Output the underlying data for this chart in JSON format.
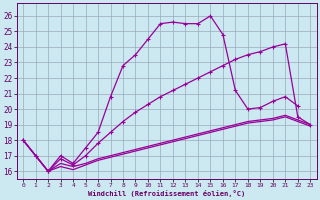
{
  "xlabel": "Windchill (Refroidissement éolien,°C)",
  "background_color": "#cce8f0",
  "grid_color": "#99aabb",
  "line_color": "#990099",
  "xlim": [
    -0.5,
    23.5
  ],
  "ylim": [
    15.5,
    26.8
  ],
  "x_ticks": [
    0,
    1,
    2,
    3,
    4,
    5,
    6,
    7,
    8,
    9,
    10,
    11,
    12,
    13,
    14,
    15,
    16,
    17,
    18,
    19,
    20,
    21,
    22,
    23
  ],
  "y_ticks": [
    16,
    17,
    18,
    19,
    20,
    21,
    22,
    23,
    24,
    25,
    26
  ],
  "line1_x": [
    0,
    1,
    2,
    3,
    4,
    5,
    6,
    7,
    8,
    9,
    10,
    11,
    12,
    13,
    14,
    15,
    16,
    17,
    18,
    19,
    20,
    21,
    22,
    23
  ],
  "line1_y": [
    18.0,
    17.0,
    16.0,
    16.5,
    16.3,
    16.5,
    16.8,
    17.0,
    17.2,
    17.4,
    17.6,
    17.8,
    18.0,
    18.2,
    18.4,
    18.6,
    18.8,
    19.0,
    19.2,
    19.3,
    19.4,
    19.6,
    19.3,
    19.0
  ],
  "line2_x": [
    0,
    1,
    2,
    3,
    4,
    5,
    6,
    7,
    8,
    9,
    10,
    11,
    12,
    13,
    14,
    15,
    16,
    17,
    18,
    19,
    20,
    21,
    22,
    23
  ],
  "line2_y": [
    18.0,
    17.0,
    16.0,
    16.3,
    16.1,
    16.4,
    16.7,
    16.9,
    17.1,
    17.3,
    17.5,
    17.7,
    17.9,
    18.1,
    18.3,
    18.5,
    18.7,
    18.9,
    19.1,
    19.2,
    19.3,
    19.5,
    19.2,
    18.9
  ],
  "line3_x": [
    0,
    1,
    2,
    3,
    4,
    5,
    6,
    7,
    8,
    9,
    10,
    11,
    12,
    13,
    14,
    15,
    16,
    17,
    18,
    19,
    20,
    21,
    22
  ],
  "line3_y": [
    18.0,
    17.0,
    16.0,
    17.0,
    16.5,
    17.5,
    18.5,
    20.8,
    22.8,
    23.5,
    24.5,
    25.5,
    25.6,
    25.5,
    25.5,
    26.0,
    24.8,
    21.2,
    20.0,
    20.1,
    20.5,
    20.8,
    20.2
  ],
  "line4_x": [
    0,
    1,
    2,
    3,
    4,
    5,
    6,
    7,
    8,
    9,
    10,
    11,
    12,
    13,
    14,
    15,
    16,
    17,
    18,
    19,
    20,
    21,
    22,
    23
  ],
  "line4_y": [
    18.0,
    17.0,
    16.0,
    16.8,
    16.4,
    17.0,
    17.8,
    18.5,
    19.2,
    19.8,
    20.3,
    20.8,
    21.2,
    21.6,
    22.0,
    22.4,
    22.8,
    23.2,
    23.5,
    23.7,
    24.0,
    24.2,
    19.5,
    19.0
  ]
}
